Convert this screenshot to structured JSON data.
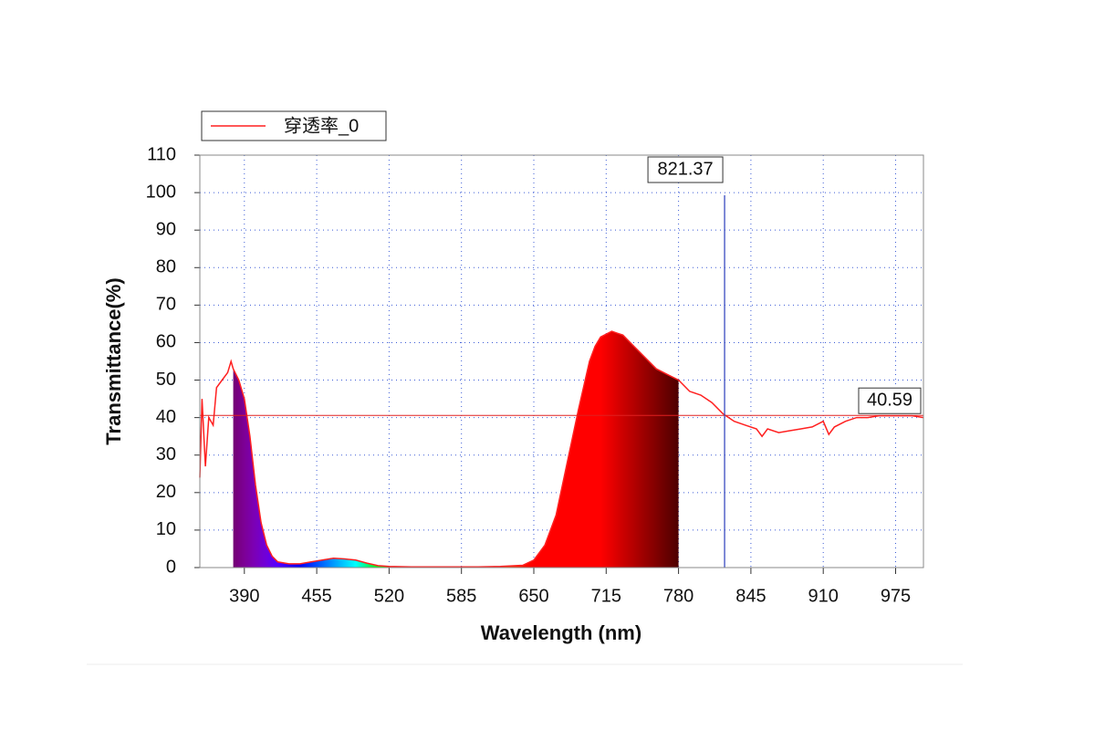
{
  "chart_data": {
    "type": "line",
    "x_label": "Wavelength (nm)",
    "y_label": "Transmittance(%)",
    "xlim": [
      350,
      1000
    ],
    "ylim": [
      0,
      110
    ],
    "xticks": [
      390,
      455,
      520,
      585,
      650,
      715,
      780,
      845,
      910,
      975
    ],
    "yticks": [
      0,
      10,
      20,
      30,
      40,
      50,
      60,
      70,
      80,
      90,
      100,
      110
    ],
    "grid": true,
    "legend": "top-left",
    "spectrum_fill": [
      380,
      780
    ],
    "cursor": {
      "x": 821.37,
      "y": 40.59
    },
    "series": [
      {
        "name": "穿透率_0",
        "color": "#ff2020",
        "x": [
          350,
          352,
          355,
          358,
          362,
          365,
          370,
          375,
          378,
          380,
          385,
          390,
          395,
          400,
          405,
          410,
          415,
          420,
          430,
          440,
          450,
          460,
          470,
          480,
          490,
          500,
          510,
          520,
          540,
          560,
          580,
          600,
          620,
          640,
          650,
          660,
          670,
          680,
          690,
          700,
          705,
          710,
          720,
          725,
          730,
          740,
          750,
          760,
          770,
          780,
          790,
          800,
          810,
          820,
          830,
          840,
          850,
          855,
          860,
          870,
          880,
          890,
          900,
          910,
          915,
          920,
          930,
          940,
          950,
          960,
          970,
          980,
          990,
          1000
        ],
        "values": [
          24,
          45,
          27,
          40,
          38,
          48,
          50,
          52,
          55,
          53,
          50,
          45,
          35,
          22,
          12,
          6,
          3,
          1.5,
          1,
          1,
          1.5,
          2,
          2.5,
          2.3,
          2,
          1.2,
          0.5,
          0.3,
          0.2,
          0.2,
          0.2,
          0.2,
          0.3,
          0.6,
          2,
          6,
          14,
          28,
          42,
          55,
          59,
          61.5,
          63,
          62.5,
          62,
          59,
          56,
          53,
          51.5,
          50,
          47,
          46,
          44,
          41,
          39,
          38,
          37,
          35,
          37,
          36,
          36.5,
          37,
          37.5,
          39,
          35.5,
          37.5,
          39,
          40,
          40,
          40.5,
          40.5,
          40.5,
          40.5,
          40
        ]
      }
    ]
  }
}
